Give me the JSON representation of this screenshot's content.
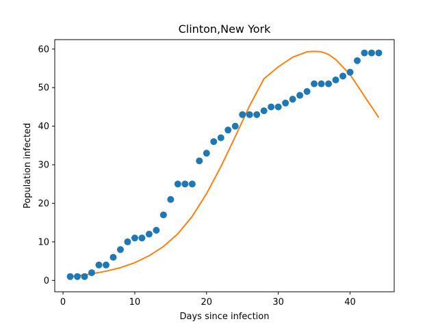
{
  "chart_data": {
    "type": "scatter",
    "title": "Clinton,New York",
    "xlabel": "Days since infection",
    "ylabel": "Population infected",
    "xlim": [
      -1.15,
      46.15
    ],
    "ylim": [
      -2.95,
      62.45
    ],
    "xticks": [
      0,
      10,
      20,
      30,
      40
    ],
    "yticks": [
      0,
      10,
      20,
      30,
      40,
      50,
      60
    ],
    "grid": false,
    "series": [
      {
        "kind": "scatter",
        "color": "#1f77b4",
        "x": [
          1,
          2,
          3,
          4,
          5,
          6,
          7,
          8,
          9,
          10,
          11,
          12,
          13,
          14,
          15,
          16,
          17,
          18,
          19,
          20,
          21,
          22,
          23,
          24,
          25,
          26,
          27,
          28,
          29,
          30,
          31,
          32,
          33,
          34,
          35,
          36,
          37,
          38,
          39,
          40,
          41,
          42,
          43,
          44
        ],
        "y": [
          1,
          1,
          1,
          2,
          4,
          4,
          6,
          8,
          10,
          11,
          11,
          12,
          13,
          17,
          21,
          25,
          25,
          25,
          31,
          33,
          36,
          37,
          39,
          40,
          43,
          43,
          43,
          44,
          45,
          45,
          46,
          47,
          48,
          49,
          51,
          51,
          51,
          52,
          53,
          54,
          57,
          59,
          59,
          59
        ]
      },
      {
        "kind": "line",
        "color": "#ff7f0e",
        "x": [
          1,
          2,
          4,
          6,
          8,
          10,
          12,
          14,
          16,
          18,
          20,
          22,
          24,
          26,
          28,
          30,
          32,
          34,
          35,
          36,
          37,
          38,
          40,
          42,
          44
        ],
        "y": [
          1,
          1.2,
          1.7,
          2.4,
          3.3,
          4.6,
          6.4,
          8.8,
          12.1,
          16.6,
          22.5,
          29.5,
          37.3,
          45.3,
          52.3,
          55.4,
          57.9,
          59.3,
          59.4,
          59.3,
          58.6,
          57.3,
          53.4,
          47.8,
          42.2
        ]
      }
    ]
  }
}
